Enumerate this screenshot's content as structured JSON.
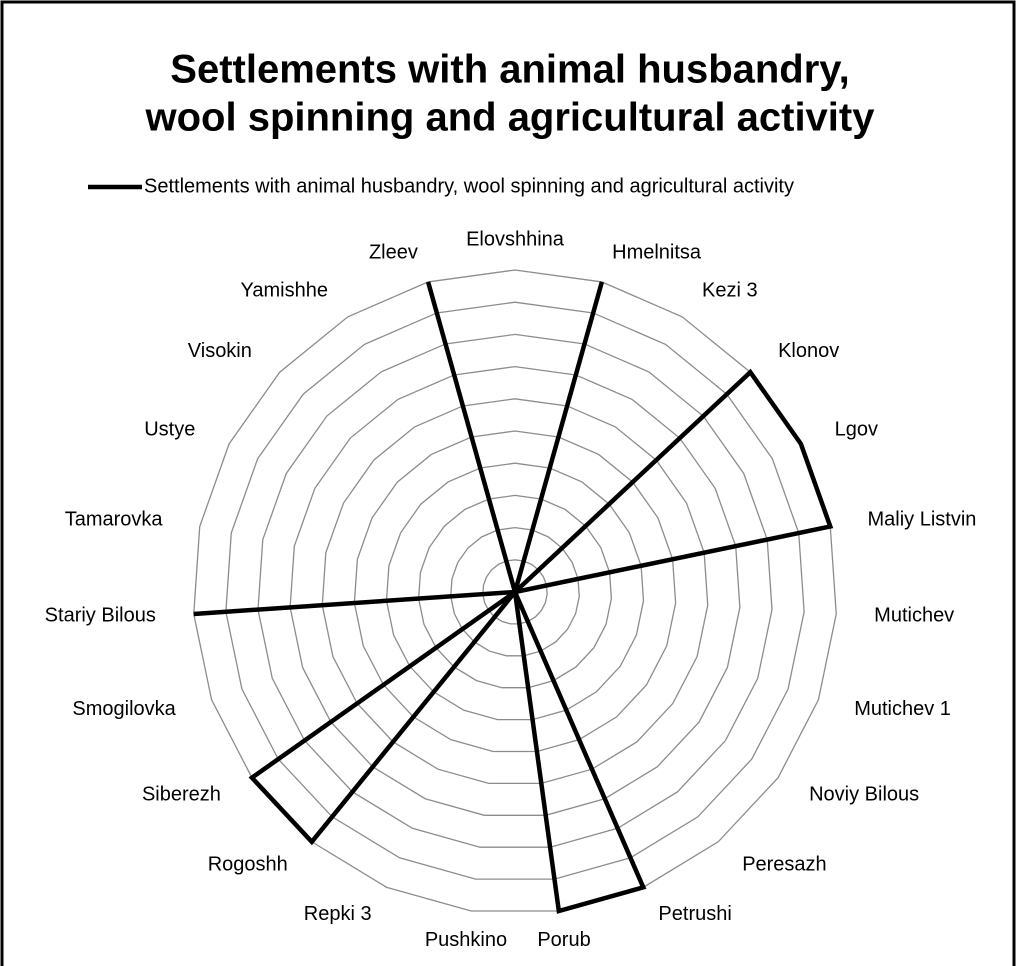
{
  "chart_data": {
    "type": "radar",
    "title": [
      "Settlements with animal husbandry,",
      "wool spinning and agricultural activity"
    ],
    "categories": [
      "Elovshhina",
      "Hmelnitsa",
      "Kezi 3",
      "Klonov",
      "Lgov",
      "Maliy Listvin",
      "Mutichev",
      "Mutichev 1",
      "Noviy Bilous",
      "Peresazh",
      "Petrushi",
      "Porub",
      "Pushkino",
      "Repki 3",
      "Rogoshh",
      "Siberezh",
      "Smogilovka",
      "Stariy Bilous",
      "Tamarovka",
      "Ustye",
      "Visokin",
      "Yamishhe",
      "Zleev"
    ],
    "series": [
      {
        "name": "Settlements with animal husbandry, wool spinning and agricultural activity",
        "color": "#000000",
        "values": [
          0,
          1,
          0,
          1,
          1,
          1,
          0,
          0,
          0,
          0,
          1,
          1,
          0,
          0,
          1,
          1,
          0,
          1,
          0,
          0,
          0,
          0,
          1
        ]
      }
    ],
    "ylim": [
      0,
      1
    ],
    "yticks": [
      0,
      0.1,
      0.2,
      0.3,
      0.4,
      0.5,
      0.6,
      0.7,
      0.8,
      0.9,
      1
    ],
    "grid": true,
    "legend": "top"
  }
}
